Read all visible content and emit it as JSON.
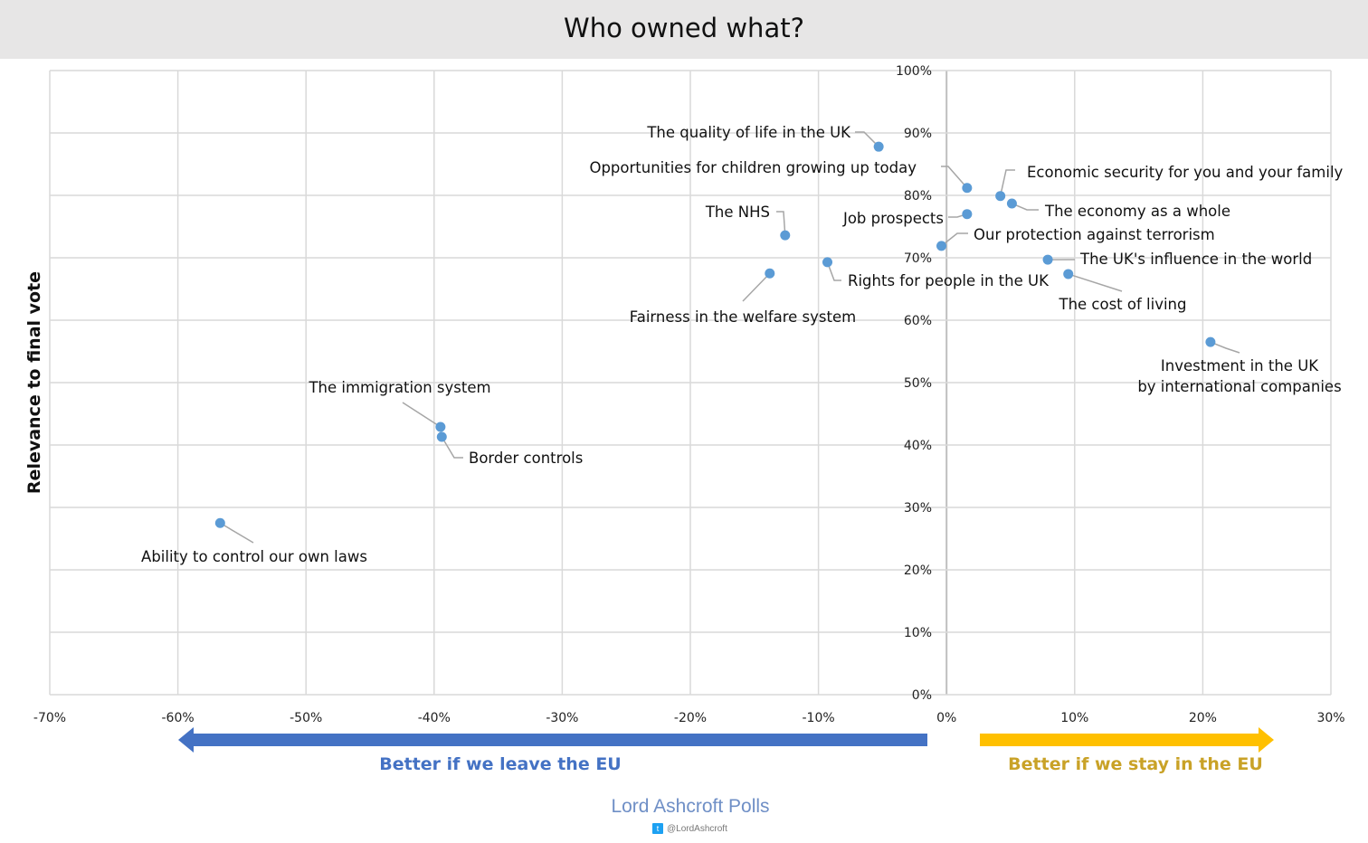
{
  "header": {
    "title": "Who owned what?"
  },
  "chart_data": {
    "type": "scatter",
    "title": "Who owned what?",
    "xlabel": "",
    "ylabel": "Relevance to final vote",
    "xlim": [
      -70,
      30
    ],
    "ylim": [
      0,
      100
    ],
    "x_ticks": [
      "-70%",
      "-60%",
      "-50%",
      "-40%",
      "-30%",
      "-20%",
      "-10%",
      "0%",
      "10%",
      "20%",
      "30%"
    ],
    "y_ticks": [
      "0%",
      "10%",
      "20%",
      "30%",
      "40%",
      "50%",
      "60%",
      "70%",
      "80%",
      "90%",
      "100%"
    ],
    "grid": true,
    "color": "#5b9bd5",
    "points": [
      {
        "label": "The quality of life in the UK",
        "x": -5.3,
        "y": 87.8
      },
      {
        "label": "Opportunities for children growing up today",
        "x": 1.6,
        "y": 81.2
      },
      {
        "label": "Economic security for you and your family",
        "x": 4.2,
        "y": 79.9
      },
      {
        "label": "The economy as a whole",
        "x": 5.1,
        "y": 78.7
      },
      {
        "label": "Job prospects",
        "x": 1.6,
        "y": 77.0
      },
      {
        "label": "The NHS",
        "x": -12.6,
        "y": 73.6
      },
      {
        "label": "Our protection against terrorism",
        "x": -0.4,
        "y": 71.9
      },
      {
        "label": "The UK's influence in the world",
        "x": 7.9,
        "y": 69.7
      },
      {
        "label": "Rights for people in the UK",
        "x": -9.3,
        "y": 69.3
      },
      {
        "label": "Fairness in the welfare system",
        "x": -13.8,
        "y": 67.5
      },
      {
        "label": "The cost of living",
        "x": 9.5,
        "y": 67.4
      },
      {
        "label": "Investment in the UK by international companies",
        "x": 20.6,
        "y": 56.5
      },
      {
        "label": "The immigration system",
        "x": -39.5,
        "y": 42.9
      },
      {
        "label": "Border controls",
        "x": -39.4,
        "y": 41.3
      },
      {
        "label": "Ability to control our own laws",
        "x": -56.7,
        "y": 27.5
      }
    ],
    "annotations": {
      "left": "Better if we leave the EU",
      "right": "Better if we stay in the EU"
    },
    "arrow_colors": {
      "left": "#4472c4",
      "right": "#ffc000"
    }
  },
  "footer": {
    "brand": "Lord Ashcroft Polls",
    "handle": "@LordAshcroft",
    "twitter_icon": "twitter-icon"
  }
}
